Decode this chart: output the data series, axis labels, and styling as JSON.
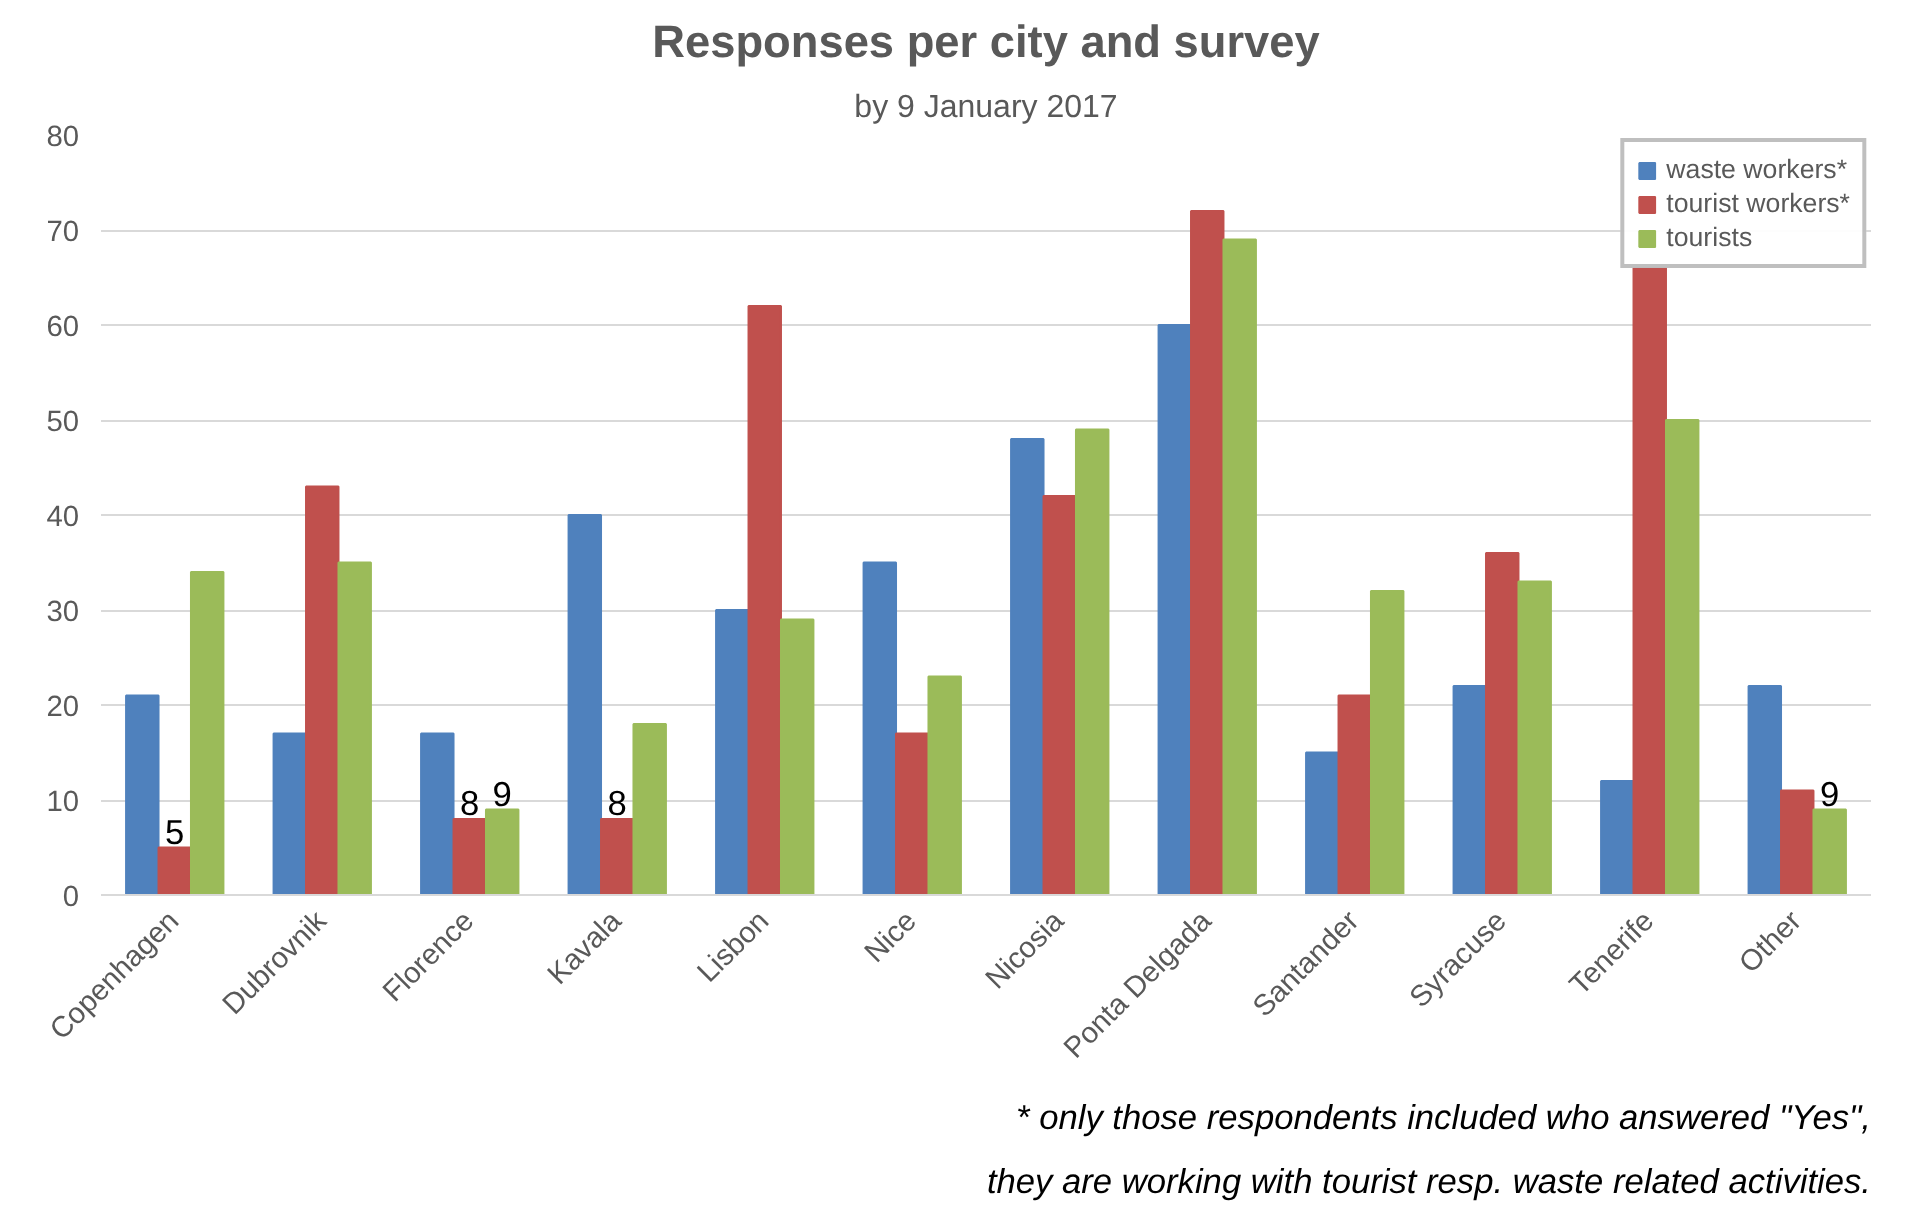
{
  "chart_data": {
    "type": "bar",
    "title": "Responses per city and survey",
    "subtitle": "by 9 January 2017",
    "categories": [
      "Copenhagen",
      "Dubrovnik",
      "Florence",
      "Kavala",
      "Lisbon",
      "Nice",
      "Nicosia",
      "Ponta Delgada",
      "Santander",
      "Syracuse",
      "Tenerife",
      "Other"
    ],
    "series": [
      {
        "name": "waste workers*",
        "color": "#4f81bd",
        "values": [
          21,
          17,
          17,
          40,
          30,
          35,
          48,
          60,
          15,
          22,
          12,
          22
        ],
        "value_labels": [
          null,
          null,
          null,
          null,
          null,
          null,
          null,
          null,
          null,
          null,
          null,
          null
        ]
      },
      {
        "name": "tourist workers*",
        "color": "#c0504d",
        "values": [
          5,
          43,
          8,
          8,
          62,
          17,
          42,
          72,
          21,
          36,
          66,
          11
        ],
        "value_labels": [
          "5",
          null,
          "8",
          "8",
          null,
          null,
          null,
          null,
          null,
          null,
          null,
          null
        ]
      },
      {
        "name": "tourists",
        "color": "#9bbb59",
        "values": [
          34,
          35,
          9,
          18,
          29,
          23,
          49,
          69,
          32,
          33,
          50,
          9
        ],
        "value_labels": [
          null,
          null,
          "9",
          null,
          null,
          null,
          null,
          null,
          null,
          null,
          null,
          "9"
        ]
      }
    ],
    "ylim": [
      0,
      80
    ],
    "yticks": [
      0,
      10,
      20,
      30,
      40,
      50,
      60,
      70,
      80
    ],
    "grid": "y",
    "legend": "top right",
    "annotations": [
      "* only those respondents included who answered \"Yes\",",
      "they are working with tourist resp. waste related activities."
    ]
  }
}
